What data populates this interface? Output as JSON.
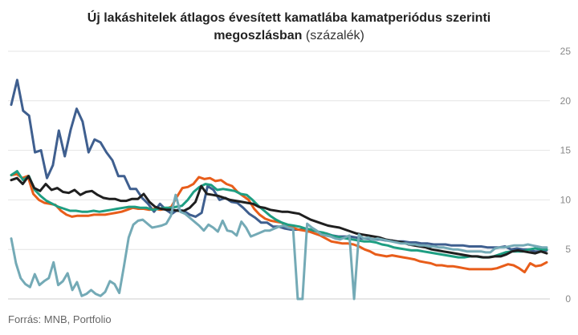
{
  "header": {
    "title_line1": "Új lakáshitelek átlagos évesített kamatlába kamatperiódus szerinti",
    "title_line2_bold": "megoszlásban",
    "title_unit": "(százalék)"
  },
  "footer": {
    "source": "Forrás: MNB, Portfolio"
  },
  "chart_data": {
    "type": "line",
    "title": "Új lakáshitelek átlagos évesített kamatlába kamatperiódus szerinti megoszlásban",
    "unit": "(százalék)",
    "y_ticks": [
      "0",
      "5",
      "10",
      "15",
      "20",
      "25"
    ],
    "ylim": [
      0,
      25
    ],
    "grid": true,
    "y_axis_position": "right",
    "legend": "none",
    "series": [
      {
        "color": "#3f5f8f",
        "values": [
          19.6,
          22.1,
          19.0,
          18.5,
          14.8,
          15.0,
          12.2,
          13.5,
          17.0,
          14.4,
          17.1,
          19.2,
          17.9,
          14.8,
          16.1,
          15.8,
          14.8,
          14.0,
          12.4,
          12.4,
          11.1,
          11.1,
          10.2,
          9.6,
          8.8,
          9.6,
          9.0,
          8.6,
          9.0,
          8.9,
          8.5,
          8.3,
          8.7,
          11.4,
          11.0,
          10.0,
          10.2,
          9.8,
          9.7,
          9.2,
          8.6,
          8.2,
          7.7,
          7.7,
          7.3,
          7.3,
          7.1,
          7.0,
          7.0,
          7.0,
          6.8,
          6.9,
          6.7,
          6.6,
          6.4,
          6.3,
          6.3,
          6.3,
          6.2,
          6.1,
          6.1,
          6.0,
          6.0,
          5.9,
          5.9,
          5.8,
          5.8,
          5.7,
          5.7,
          5.6,
          5.6,
          5.5,
          5.5,
          5.5,
          5.4,
          5.4,
          5.4,
          5.3,
          5.3,
          5.3,
          5.2,
          5.2,
          5.2,
          5.3,
          5.0,
          5.1,
          5.0,
          5.0,
          4.8,
          4.8,
          4.9
        ]
      },
      {
        "color": "#e85d1a",
        "values": [
          12.5,
          12.6,
          12.2,
          12.4,
          10.6,
          10.0,
          9.7,
          9.6,
          9.5,
          8.9,
          8.5,
          8.3,
          8.4,
          8.4,
          8.4,
          8.5,
          8.5,
          8.5,
          8.6,
          8.7,
          8.8,
          9.0,
          9.2,
          9.1,
          9.1,
          9.0,
          9.1,
          9.0,
          9.1,
          9.3,
          10.3,
          11.2,
          11.3,
          11.6,
          12.3,
          12.1,
          12.2,
          11.9,
          12.0,
          11.6,
          11.4,
          10.8,
          10.4,
          10.0,
          9.1,
          8.5,
          8.1,
          7.9,
          7.8,
          7.7,
          7.3,
          7.2,
          7.0,
          6.9,
          6.8,
          6.6,
          6.4,
          6.1,
          5.8,
          5.7,
          5.6,
          5.6,
          5.5,
          5.3,
          5.0,
          4.8,
          4.5,
          4.4,
          4.3,
          4.4,
          4.3,
          4.2,
          4.1,
          4.0,
          3.8,
          3.7,
          3.6,
          3.4,
          3.4,
          3.3,
          3.3,
          3.2,
          3.1,
          3.0,
          3.0,
          3.0,
          3.0,
          3.0,
          3.1,
          3.3,
          3.5,
          3.4,
          3.1,
          2.7,
          3.6,
          3.3,
          3.4,
          3.7
        ]
      },
      {
        "color": "#1e9e82",
        "values": [
          12.5,
          12.9,
          12.0,
          12.4,
          11.0,
          10.4,
          9.9,
          9.6,
          9.3,
          9.1,
          8.9,
          8.9,
          8.8,
          8.8,
          8.9,
          8.8,
          8.9,
          9.0,
          9.1,
          9.2,
          9.3,
          9.3,
          9.2,
          9.2,
          9.0,
          9.1,
          9.2,
          9.2,
          9.3,
          9.4,
          10.0,
          10.8,
          11.3,
          11.6,
          11.5,
          11.0,
          11.1,
          11.0,
          10.9,
          10.6,
          10.5,
          10.0,
          9.4,
          8.9,
          8.4,
          8.0,
          7.7,
          7.5,
          7.4,
          7.3,
          7.1,
          7.0,
          6.8,
          6.7,
          6.5,
          6.3,
          6.2,
          6.1,
          6.0,
          5.9,
          5.8,
          5.8,
          5.7,
          5.5,
          5.4,
          5.2,
          5.1,
          5.0,
          4.9,
          4.9,
          4.8,
          4.7,
          4.6,
          4.5,
          4.4,
          4.3,
          4.2,
          4.2,
          4.3,
          4.3,
          4.2,
          4.2,
          4.3,
          4.5,
          4.7,
          4.8,
          4.8,
          4.8,
          5.0,
          5.1,
          5.0,
          5.0
        ]
      },
      {
        "color": "#1f1f1f",
        "values": [
          12.0,
          12.2,
          11.6,
          12.4,
          11.2,
          10.9,
          11.6,
          11.0,
          11.2,
          10.8,
          10.7,
          11.0,
          10.5,
          10.8,
          10.9,
          10.5,
          10.2,
          10.1,
          10.1,
          9.9,
          9.9,
          10.1,
          10.1,
          10.6,
          9.8,
          9.3,
          9.1,
          9.0,
          9.0,
          8.9,
          8.9,
          9.2,
          9.8,
          11.4,
          10.6,
          10.5,
          10.4,
          10.2,
          10.0,
          9.9,
          9.8,
          9.7,
          9.6,
          9.3,
          9.2,
          9.0,
          8.9,
          8.8,
          8.8,
          8.7,
          8.6,
          8.3,
          8.0,
          7.8,
          7.6,
          7.4,
          7.3,
          7.2,
          7.0,
          6.8,
          6.6,
          6.5,
          6.4,
          6.3,
          6.2,
          6.0,
          5.9,
          5.8,
          5.7,
          5.5,
          5.4,
          5.3,
          5.2,
          5.0,
          4.9,
          4.8,
          4.7,
          4.6,
          4.5,
          4.4,
          4.3,
          4.3,
          4.2,
          4.2,
          4.3,
          4.3,
          4.5,
          4.8,
          4.9,
          4.8,
          4.7,
          4.6,
          4.8,
          4.6
        ]
      },
      {
        "color": "#74aab6",
        "values": [
          6.1,
          3.6,
          2.1,
          1.5,
          1.2,
          2.5,
          1.4,
          1.8,
          2.1,
          3.7,
          1.4,
          1.8,
          2.6,
          0.9,
          1.7,
          0.3,
          0.5,
          0.9,
          0.5,
          0.3,
          0.7,
          1.8,
          1.5,
          0.6,
          3.3,
          6.2,
          7.5,
          7.9,
          8.0,
          7.6,
          7.2,
          7.3,
          7.4,
          7.6,
          8.4,
          10.5,
          8.8,
          8.6,
          8.2,
          7.8,
          7.4,
          6.9,
          7.5,
          7.2,
          6.8,
          7.9,
          6.9,
          6.8,
          6.4,
          7.8,
          7.2,
          6.3,
          6.5,
          6.7,
          6.9,
          6.9,
          7.1,
          7.3,
          7.4,
          7.2,
          7.1,
          0.0,
          0.0,
          7.6,
          7.2,
          6.9,
          6.5,
          6.4,
          6.3,
          6.1,
          6.0,
          6.2,
          6.4,
          0.0,
          6.5,
          6.1,
          6.2,
          6.0,
          6.1,
          6.0,
          5.9,
          5.8,
          5.7,
          5.6,
          5.6,
          5.5,
          5.5,
          5.4,
          5.4,
          5.3,
          5.3,
          5.2,
          5.2,
          5.1,
          5.0,
          5.0,
          4.9,
          4.8,
          4.8,
          4.8,
          4.8,
          4.7,
          4.7,
          5.1,
          5.2,
          5.2,
          5.3,
          5.4,
          5.4,
          5.4,
          5.5,
          5.4,
          5.3,
          5.2,
          5.2
        ]
      }
    ]
  }
}
